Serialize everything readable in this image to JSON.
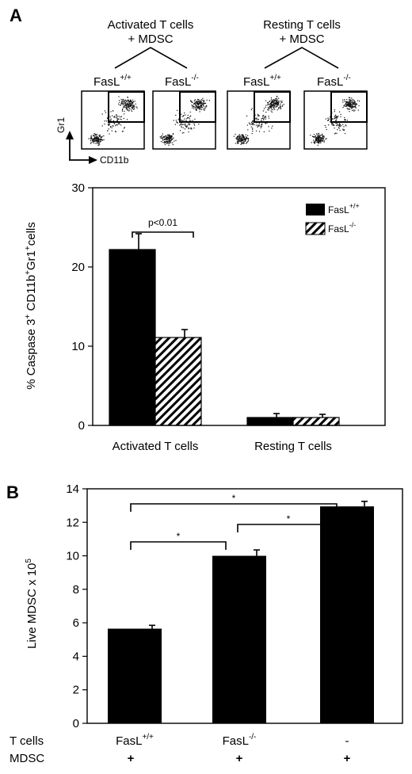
{
  "panel_a": {
    "letter": "A",
    "groups": [
      {
        "line1": "Activated T cells",
        "line2": "+ MDSC"
      },
      {
        "line1": "Resting T cells",
        "line2": "+ MDSC"
      }
    ],
    "flow_plots": [
      {
        "genotype": "FasL",
        "sup": "+/+"
      },
      {
        "genotype": "FasL",
        "sup": "-/-"
      },
      {
        "genotype": "FasL",
        "sup": "+/+"
      },
      {
        "genotype": "FasL",
        "sup": "-/-"
      }
    ],
    "flow_axis_y": "Gr1",
    "flow_axis_x": "CD11b"
  },
  "panel_b": {
    "letter": "B",
    "row_labels": [
      "T cells",
      "MDSC"
    ],
    "t_cells": [
      {
        "text": "FasL",
        "sup": "+/+"
      },
      {
        "text": "FasL",
        "sup": "-/-"
      },
      {
        "text": "-",
        "sup": ""
      }
    ],
    "mdsc": [
      "+",
      "+",
      "+"
    ]
  },
  "chart_data": [
    {
      "type": "bar",
      "categories": [
        "Activated T cells",
        "Resting T cells"
      ],
      "series": [
        {
          "name": "FasL+/+",
          "values": [
            22.2,
            1.0
          ],
          "errors": [
            2.0,
            0.5
          ],
          "color": "#000000",
          "fill": "solid"
        },
        {
          "name": "FasL-/-",
          "values": [
            11.1,
            1.0
          ],
          "errors": [
            1.0,
            0.4
          ],
          "color": "#000000",
          "fill": "diagonal-hatch"
        }
      ],
      "legend": [
        {
          "text": "FasL",
          "sup": "+/+"
        },
        {
          "text": "FasL",
          "sup": "-/-"
        }
      ],
      "ylabel": {
        "pre": "% Caspase 3",
        "sup1": "+",
        "mid": " CD11b",
        "sup2": "+",
        "mid2": "Gr1",
        "sup3": "+",
        "post": "cells"
      },
      "ylim": [
        0,
        30
      ],
      "yticks": [
        0,
        10,
        20,
        30
      ],
      "annotations": [
        {
          "text": "p<0.01"
        }
      ],
      "legend_position": "top-right"
    },
    {
      "type": "bar",
      "categories": [
        "FasL+/+",
        "FasL-/-",
        "-"
      ],
      "series": [
        {
          "values": [
            5.65,
            10.0,
            12.95
          ],
          "errors": [
            0.2,
            0.35,
            0.3
          ],
          "color": "#000000"
        }
      ],
      "ylabel": {
        "pre": "Live MDSC x 10",
        "sup": "5"
      },
      "ylim": [
        0,
        14
      ],
      "yticks": [
        0,
        2,
        4,
        6,
        8,
        10,
        12,
        14
      ],
      "annotations": [
        {
          "text": "*"
        },
        {
          "text": "*"
        },
        {
          "text": "*"
        }
      ]
    }
  ]
}
